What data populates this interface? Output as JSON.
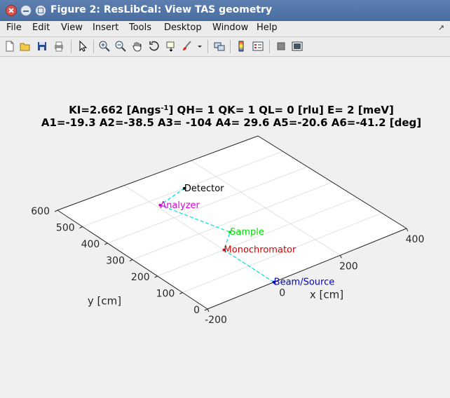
{
  "window": {
    "title": "Figure 2: ResLibCal: View TAS geometry"
  },
  "menu": [
    "File",
    "Edit",
    "View",
    "Insert",
    "Tools",
    "Desktop",
    "Window",
    "Help"
  ],
  "menu_expand_icon": "arrow-expand-icon",
  "toolbar_icons": [
    "new-figure-icon",
    "open-file-icon",
    "save-icon",
    "print-icon",
    "edit-plot-arrow-icon",
    "zoom-in-icon",
    "zoom-out-icon",
    "pan-hand-icon",
    "rotate-3d-icon",
    "data-cursor-icon",
    "brush-icon",
    "brush-dropdown-icon",
    "link-plot-icon",
    "insert-colorbar-icon",
    "insert-legend-icon",
    "hide-plot-tools-icon",
    "show-plot-tools-icon"
  ],
  "plot": {
    "title_line1_prefix": "KI=2.662 [Angs",
    "title_line1_sup": "-1",
    "title_line1_suffix": "] QH=    1 QK=    1 QL=    0 [rlu] E=    2 [meV]",
    "title_line2": "A1=-19.3 A2=-38.5 A3= -104 A4= 29.6 A5=-20.6 A6=-41.2 [deg]",
    "xlabel": "x [cm]",
    "ylabel": "y [cm]",
    "x_ticks": [
      "-200",
      "0",
      "200",
      "400"
    ],
    "y_ticks": [
      "0",
      "100",
      "200",
      "300",
      "400",
      "500",
      "600"
    ]
  },
  "chart_data": {
    "type": "line",
    "view": "3d",
    "xlabel": "x [cm]",
    "ylabel": "y [cm]",
    "xlim": [
      -200,
      400
    ],
    "ylim": [
      0,
      600
    ],
    "grid": true,
    "points": [
      {
        "name": "Beam/Source",
        "x": 0,
        "y": 0,
        "color": "#0000cc"
      },
      {
        "name": "Monochromator",
        "x": 0,
        "y": 200,
        "color": "#dd0000"
      },
      {
        "name": "Sample",
        "x": 63,
        "y": 260,
        "color": "#00e000"
      },
      {
        "name": "Analyzer",
        "x": 10,
        "y": 470,
        "color": "#e000e0"
      },
      {
        "name": "Detector",
        "x": 105,
        "y": 500,
        "color": "#000000"
      }
    ],
    "line_color": "#00e5e5",
    "line_style": "dashed"
  }
}
